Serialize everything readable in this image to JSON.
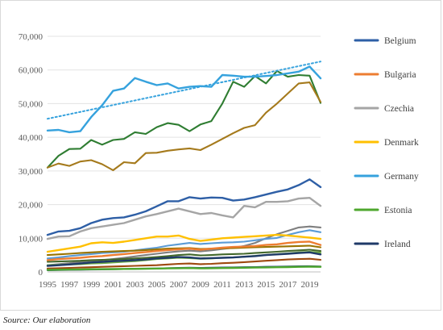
{
  "source_note": "Source: Our elaboration",
  "chart_data": {
    "type": "line",
    "title": "",
    "xlabel": "",
    "ylabel": "",
    "ylim": [
      0,
      70000
    ],
    "yticks": [
      0,
      10000,
      20000,
      30000,
      40000,
      50000,
      60000,
      70000
    ],
    "ytick_labels": [
      "0",
      "10,000",
      "20,000",
      "30,000",
      "40,000",
      "50,000",
      "60,000",
      "70,000"
    ],
    "xlim": [
      1995,
      2020
    ],
    "xtick_labels": [
      "1995",
      "1997",
      "1999",
      "2001",
      "2003",
      "2005",
      "2007",
      "2009",
      "2011",
      "2013",
      "2015",
      "2017",
      "2019"
    ],
    "grid": "horizontal",
    "legend_position": "right",
    "x": [
      1995,
      1996,
      1997,
      1998,
      1999,
      2000,
      2001,
      2002,
      2003,
      2004,
      2005,
      2006,
      2007,
      2008,
      2009,
      2010,
      2011,
      2012,
      2013,
      2014,
      2015,
      2016,
      2017,
      2018,
      2019,
      2020
    ],
    "series": [
      {
        "name": "Belgium",
        "legend": true,
        "color": "#2e5fa6",
        "values": [
          11000,
          12000,
          12200,
          13000,
          14500,
          15500,
          16000,
          16200,
          17000,
          18000,
          19500,
          21000,
          21000,
          22200,
          21800,
          22100,
          22000,
          21200,
          21500,
          22200,
          23000,
          23800,
          24500,
          25800,
          27500,
          25200
        ]
      },
      {
        "name": "Bulgaria",
        "legend": true,
        "color": "#ed7d31",
        "values": [
          3500,
          3800,
          4000,
          4200,
          4500,
          4700,
          5000,
          5300,
          5600,
          5900,
          6200,
          6500,
          6700,
          6900,
          6600,
          6900,
          7200,
          7400,
          7500,
          7700,
          8000,
          8200,
          8600,
          8900,
          9000,
          8000
        ]
      },
      {
        "name": "Czechia",
        "legend": true,
        "color": "#a5a5a5",
        "values": [
          9800,
          10500,
          10600,
          12000,
          13000,
          13500,
          14000,
          14500,
          15500,
          16500,
          17200,
          18000,
          18800,
          18000,
          17200,
          17500,
          16800,
          16200,
          19600,
          19200,
          20800,
          20800,
          21000,
          21800,
          22000,
          19600
        ]
      },
      {
        "name": "Denmark",
        "legend": true,
        "color": "#ffc000",
        "values": [
          6000,
          6500,
          7000,
          7500,
          8500,
          8800,
          8600,
          9000,
          9500,
          10000,
          10500,
          10500,
          10800,
          9800,
          9200,
          9600,
          10000,
          10200,
          10400,
          10600,
          10800,
          11000,
          10800,
          10500,
          10200,
          9800
        ]
      },
      {
        "name": "Germany",
        "legend": true,
        "color": "#36a2dd",
        "values": [
          42000,
          42200,
          41500,
          41800,
          46000,
          49500,
          53800,
          54500,
          57600,
          56500,
          55500,
          56000,
          54500,
          55000,
          55200,
          55000,
          58500,
          58300,
          58000,
          58000,
          58200,
          58500,
          59000,
          59500,
          61000,
          57500
        ]
      },
      {
        "name": "Estonia",
        "legend": true,
        "color": "#4ea72e",
        "values": [
          600,
          650,
          700,
          750,
          800,
          820,
          850,
          880,
          900,
          950,
          1000,
          1050,
          1100,
          1150,
          1050,
          1100,
          1150,
          1200,
          1250,
          1300,
          1350,
          1400,
          1450,
          1500,
          1550,
          1500
        ]
      },
      {
        "name": "Ireland",
        "legend": true,
        "color": "#1f3a68",
        "values": [
          1800,
          2000,
          2200,
          2500,
          2800,
          3000,
          3200,
          3300,
          3500,
          3700,
          4000,
          4200,
          4400,
          4300,
          4000,
          4100,
          4200,
          4300,
          4500,
          4700,
          5000,
          5200,
          5400,
          5600,
          5800,
          5200
        ]
      },
      {
        "name": "",
        "legend": false,
        "color": "#2f7d32",
        "values": [
          31000,
          34500,
          36500,
          36600,
          39200,
          37800,
          39200,
          39500,
          41500,
          41000,
          43000,
          44200,
          43700,
          41800,
          43800,
          44800,
          50000,
          56500,
          55000,
          58200,
          56000,
          59700,
          58000,
          58500,
          58300,
          50200
        ]
      },
      {
        "name": "",
        "legend": false,
        "color": "#a57a1c",
        "values": [
          31000,
          32200,
          31500,
          32800,
          33200,
          32000,
          30200,
          32600,
          32300,
          35300,
          35400,
          36000,
          36400,
          36700,
          36200,
          37800,
          39500,
          41200,
          42800,
          43600,
          47300,
          50000,
          53000,
          56000,
          56300,
          50500
        ]
      },
      {
        "name": "",
        "legend": false,
        "color": "#7f7f7f",
        "values": [
          2000,
          2300,
          2600,
          3000,
          3300,
          3500,
          3800,
          4200,
          4600,
          5000,
          5400,
          5800,
          6100,
          6300,
          6100,
          6400,
          6800,
          7200,
          7700,
          8600,
          10000,
          11200,
          12200,
          13200,
          13500,
          13200
        ]
      },
      {
        "name": "",
        "legend": false,
        "color": "#5b9bd5",
        "values": [
          4000,
          4300,
          4700,
          5000,
          5300,
          5600,
          5800,
          6000,
          6400,
          6800,
          7200,
          7800,
          8200,
          8600,
          8300,
          8500,
          8700,
          8800,
          9000,
          9400,
          9800,
          10100,
          11000,
          11800,
          12400,
          11800
        ]
      },
      {
        "name": "",
        "legend": false,
        "color": "#70ad47",
        "values": [
          2000,
          2100,
          2200,
          2300,
          2500,
          2600,
          2800,
          3000,
          3200,
          3500,
          3800,
          4000,
          4200,
          4100,
          3900,
          4000,
          4200,
          4300,
          4500,
          4800,
          5000,
          5300,
          5500,
          5800,
          6000,
          5700
        ]
      },
      {
        "name": "",
        "legend": false,
        "color": "#9e480e",
        "values": [
          1000,
          1100,
          1200,
          1300,
          1400,
          1500,
          1600,
          1700,
          1800,
          1900,
          2000,
          2200,
          2400,
          2500,
          2300,
          2400,
          2600,
          2700,
          2900,
          3100,
          3300,
          3500,
          3700,
          3800,
          3900,
          3600
        ]
      },
      {
        "name": "",
        "legend": false,
        "color": "#264478",
        "values": [
          500,
          550,
          600,
          650,
          700,
          750,
          800,
          850,
          900,
          950,
          1000,
          1100,
          1200,
          1250,
          1200,
          1250,
          1300,
          1350,
          1400,
          1450,
          1500,
          1550,
          1600,
          1650,
          1700,
          1600
        ]
      },
      {
        "name": "",
        "legend": false,
        "color": "#43682b",
        "values": [
          3000,
          3100,
          3200,
          3300,
          3500,
          3600,
          3700,
          3800,
          4000,
          4200,
          4400,
          4700,
          5000,
          5200,
          4900,
          5000,
          5200,
          5300,
          5400,
          5600,
          5800,
          6000,
          6200,
          6400,
          6600,
          6200
        ]
      },
      {
        "name": "",
        "legend": false,
        "color": "#997300",
        "values": [
          5000,
          5200,
          5400,
          5600,
          5800,
          6000,
          6100,
          6200,
          6300,
          6500,
          6700,
          6900,
          7000,
          7100,
          6800,
          6900,
          7000,
          7100,
          7200,
          7300,
          7400,
          7500,
          7600,
          7700,
          7800,
          7300
        ]
      }
    ],
    "trendline": {
      "series": "Germany",
      "style": "dotted",
      "color": "#36a2dd",
      "start": [
        1995,
        45500
      ],
      "end": [
        2020,
        62500
      ]
    }
  }
}
